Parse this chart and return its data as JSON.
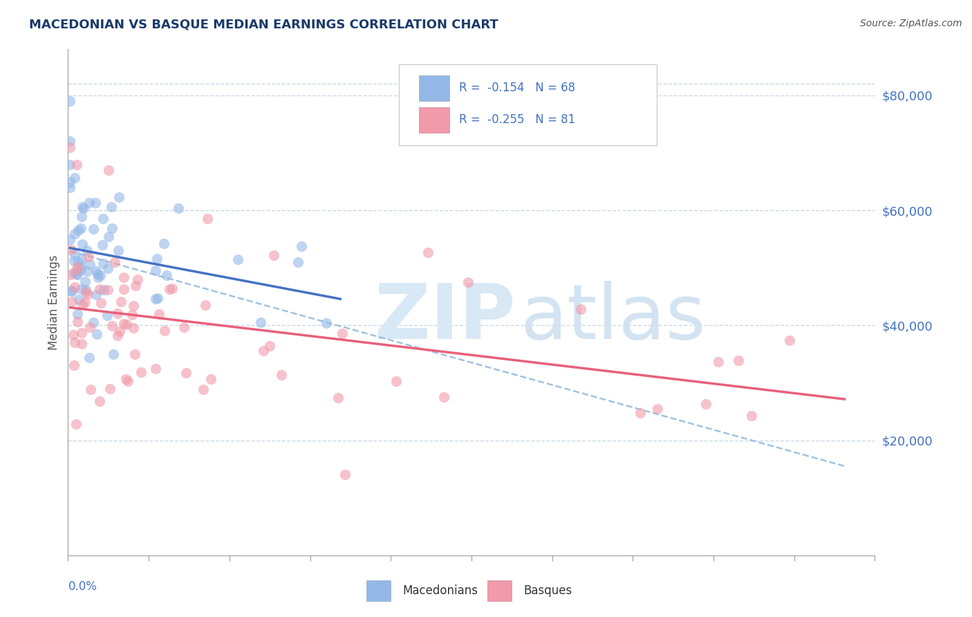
{
  "title": "MACEDONIAN VS BASQUE MEDIAN EARNINGS CORRELATION CHART",
  "source": "Source: ZipAtlas.com",
  "ylabel": "Median Earnings",
  "xlim": [
    0.0,
    0.4
  ],
  "ylim": [
    0,
    88000
  ],
  "yticks": [
    20000,
    40000,
    60000,
    80000
  ],
  "ytick_labels": [
    "$20,000",
    "$40,000",
    "$60,000",
    "$80,000"
  ],
  "mac_color": "#93b8e8",
  "bas_color": "#f09aaa",
  "mac_line_color": "#4472c4",
  "bas_line_color": "#e8607a",
  "dash_line_color": "#8ab4d8",
  "title_color": "#1a3a6a",
  "axis_color": "#4472c4",
  "background_color": "#ffffff",
  "grid_color": "#c8d8e8",
  "macedonians_label": "Macedonians",
  "basques_label": "Basques",
  "mac_R": -0.154,
  "mac_N": 68,
  "bas_R": -0.255,
  "bas_N": 81
}
